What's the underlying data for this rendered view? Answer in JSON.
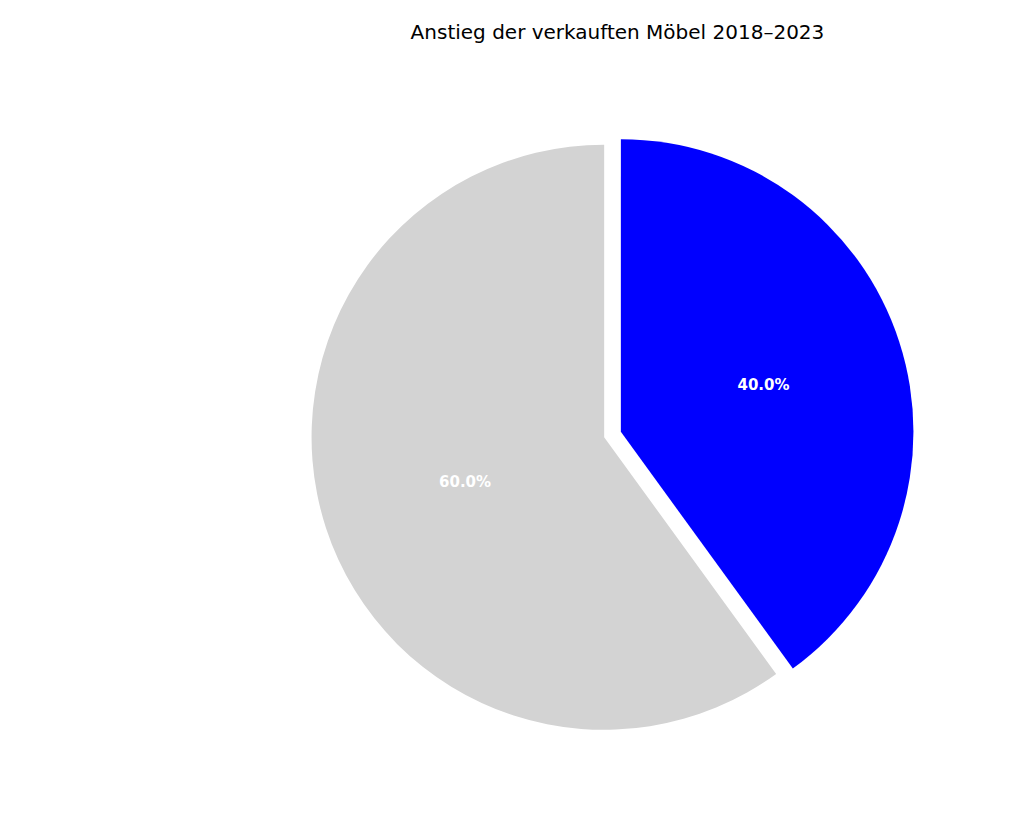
{
  "chart_data": {
    "type": "pie",
    "title": "Anstieg der verkauften Möbel 2018–2023",
    "values": [
      40,
      60
    ],
    "value_labels": [
      "40.0%",
      "60.0%"
    ],
    "colors": [
      "#0000ff",
      "#d3d3d3"
    ],
    "data_labels": true
  }
}
